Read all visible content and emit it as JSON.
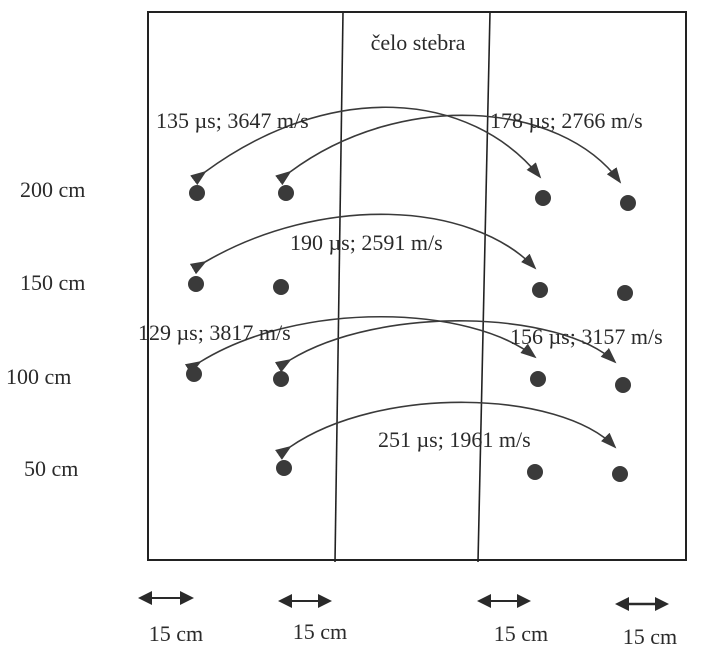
{
  "title": "čelo stebra",
  "heights": [
    "200 cm",
    "150 cm",
    "100 cm",
    "50 cm"
  ],
  "spacings": [
    "15 cm",
    "15 cm",
    "15 cm",
    "15 cm"
  ],
  "measurements": [
    {
      "time": "135 µs",
      "speed": "3647 m/s",
      "label": "135 µs; 3647 m/s"
    },
    {
      "time": "178 µs",
      "speed": "2766 m/s",
      "label": "178 µs; 2766 m/s"
    },
    {
      "time": "190 µs",
      "speed": "2591 m/s",
      "label": "190 µs; 2591 m/s"
    },
    {
      "time": "129 µs",
      "speed": "3817 m/s",
      "label": "129 µs; 3817 m/s"
    },
    {
      "time": "156 µs",
      "speed": "3157 m/s",
      "label": "156 µs; 3157 m/s"
    },
    {
      "time": "251 µs",
      "speed": "1961 m/s",
      "label": "251 µs; 1961 m/s"
    }
  ],
  "colors": {
    "ink": "#2a2a2a",
    "dot": "#3a3a3a",
    "background": "#ffffff"
  }
}
